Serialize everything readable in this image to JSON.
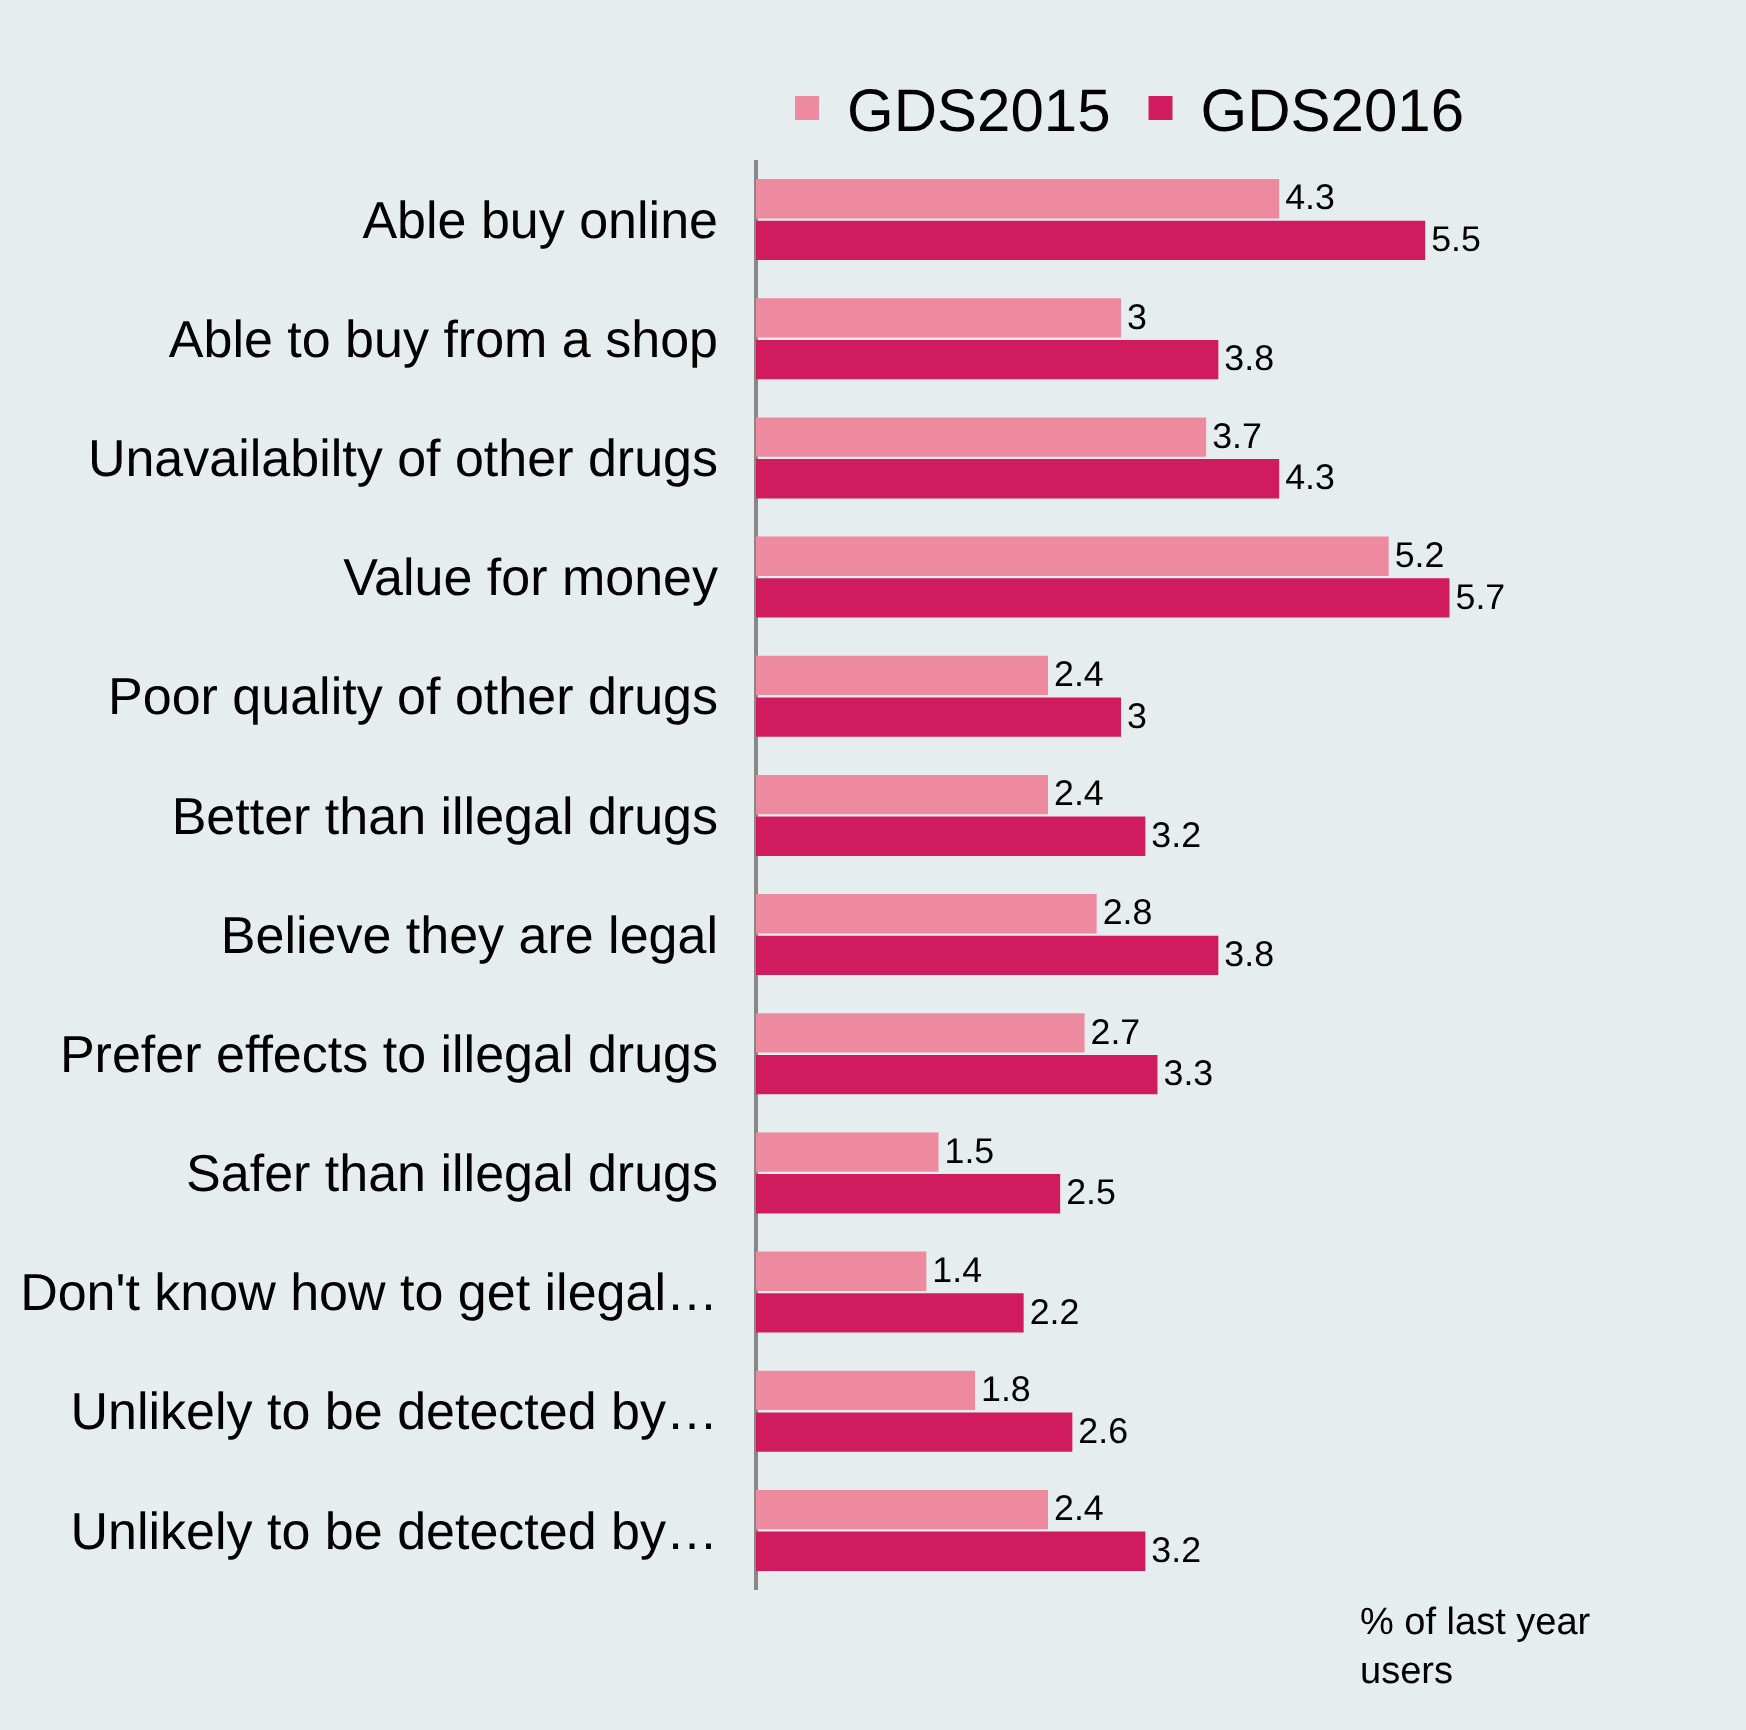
{
  "chart_data": {
    "type": "bar",
    "orientation": "horizontal",
    "legend": "top",
    "data_labels": true,
    "tick_labels": "y",
    "categories": [
      "Able buy online",
      "Able to buy from a shop",
      "Unavailabilty of other drugs",
      "Value for money",
      "Poor quality of other drugs",
      "Better than illegal drugs",
      "Believe they are legal",
      "Prefer effects to illegal drugs",
      "Safer than illegal drugs",
      "Don't know how to get ilegal…",
      "Unlikely to be detected by…",
      "Unlikely to be detected by…"
    ],
    "series": [
      {
        "name": "GDS2015",
        "color": "#ee8aa0",
        "values": [
          4.3,
          3,
          3.7,
          5.2,
          2.4,
          2.4,
          2.8,
          2.7,
          1.5,
          1.4,
          1.8,
          2.4
        ]
      },
      {
        "name": "GDS2016",
        "color": "#d01c5f",
        "values": [
          5.5,
          3.8,
          4.3,
          5.7,
          3,
          3.2,
          3.8,
          3.3,
          2.5,
          2.2,
          2.6,
          3.2
        ]
      }
    ],
    "annotations": [
      "% of last year\nusers"
    ]
  }
}
